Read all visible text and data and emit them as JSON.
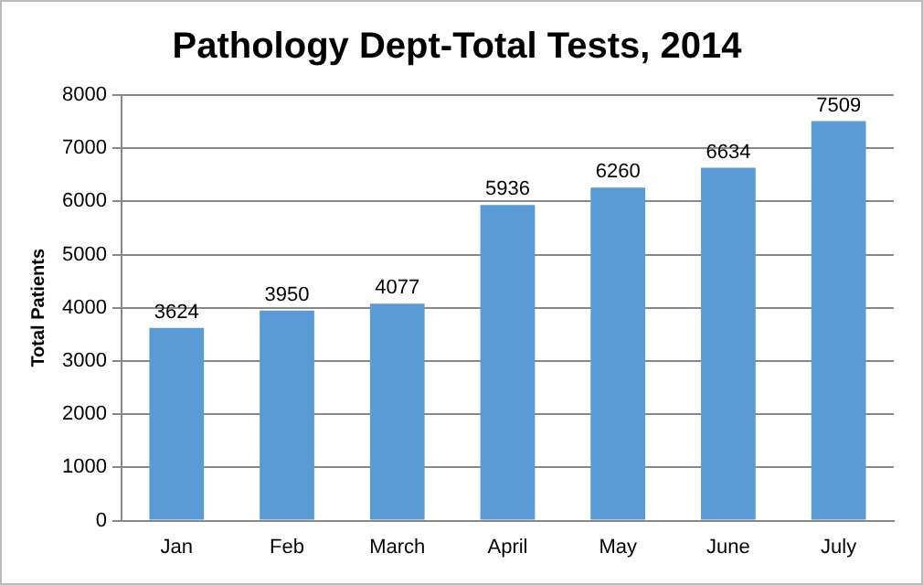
{
  "chart_data": {
    "type": "bar",
    "title": "Pathology Dept-Total Tests, 2014",
    "ylabel": "Total Patients",
    "categories": [
      "Jan",
      "Feb",
      "March",
      "April",
      "May",
      "June",
      "July"
    ],
    "values": [
      3624,
      3950,
      4077,
      5936,
      6260,
      6634,
      7509
    ],
    "color": "#5b9bd5",
    "ylim": [
      0,
      8000
    ],
    "yticks": [
      0,
      1000,
      2000,
      3000,
      4000,
      5000,
      6000,
      7000,
      8000
    ],
    "grid": "y",
    "data_labels": true,
    "legend": false
  }
}
